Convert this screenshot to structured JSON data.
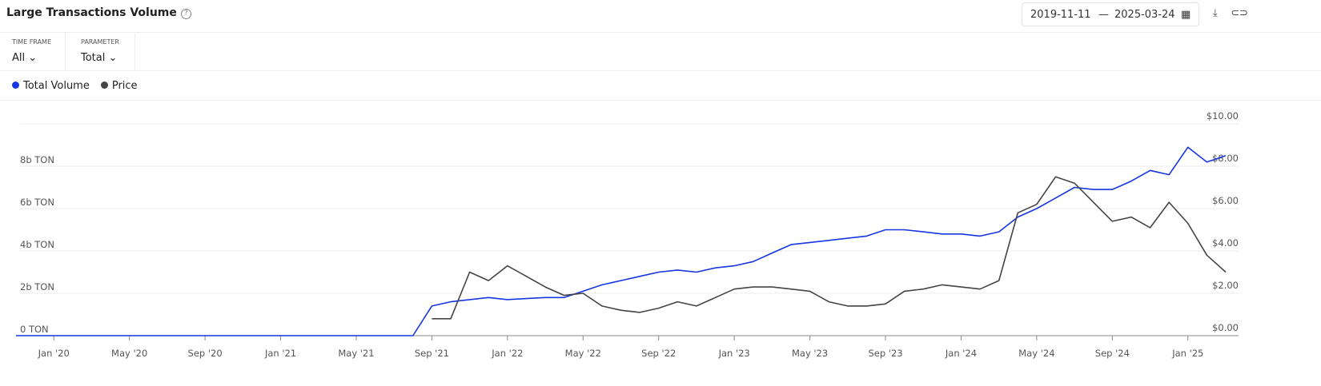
{
  "header": {
    "title": "Large Transactions Volume",
    "date_from": "2019-11-11",
    "date_separator": "—",
    "date_to": "2025-03-24"
  },
  "filters": [
    {
      "label": "TIME FRAME",
      "value": "All"
    },
    {
      "label": "PARAMETER",
      "value": "Total"
    }
  ],
  "chart_data": {
    "type": "line",
    "x": [
      "2019-11",
      "2019-12",
      "2020-01",
      "2020-02",
      "2020-03",
      "2020-04",
      "2020-05",
      "2020-06",
      "2020-07",
      "2020-08",
      "2020-09",
      "2020-10",
      "2020-11",
      "2020-12",
      "2021-01",
      "2021-02",
      "2021-03",
      "2021-04",
      "2021-05",
      "2021-06",
      "2021-07",
      "2021-08",
      "2021-09",
      "2021-10",
      "2021-11",
      "2021-12",
      "2022-01",
      "2022-02",
      "2022-03",
      "2022-04",
      "2022-05",
      "2022-06",
      "2022-07",
      "2022-08",
      "2022-09",
      "2022-10",
      "2022-11",
      "2022-12",
      "2023-01",
      "2023-02",
      "2023-03",
      "2023-04",
      "2023-05",
      "2023-06",
      "2023-07",
      "2023-08",
      "2023-09",
      "2023-10",
      "2023-11",
      "2023-12",
      "2024-01",
      "2024-02",
      "2024-03",
      "2024-04",
      "2024-05",
      "2024-06",
      "2024-07",
      "2024-08",
      "2024-09",
      "2024-10",
      "2024-11",
      "2024-12",
      "2025-01",
      "2025-02",
      "2025-03"
    ],
    "series": [
      {
        "name": "Total Volume",
        "color": "#1536e0",
        "axis": "y",
        "values": [
          0,
          0,
          0,
          0,
          0,
          0,
          0,
          0,
          0,
          0,
          0,
          0,
          0,
          0,
          0,
          0,
          0,
          0,
          0,
          0,
          0,
          0,
          1.4,
          1.6,
          1.7,
          1.8,
          1.7,
          1.75,
          1.8,
          1.8,
          2.1,
          2.4,
          2.6,
          2.8,
          3.0,
          3.1,
          3.0,
          3.2,
          3.3,
          3.5,
          3.9,
          4.3,
          4.4,
          4.5,
          4.6,
          4.7,
          5.0,
          5.0,
          4.9,
          4.8,
          4.8,
          4.7,
          4.9,
          5.6,
          6.0,
          6.5,
          7.0,
          6.9,
          6.9,
          7.3,
          7.8,
          7.6,
          8.9,
          8.2,
          8.5
        ]
      },
      {
        "name": "Price",
        "color": "#444444",
        "axis": "y2",
        "values": [
          null,
          null,
          null,
          null,
          null,
          null,
          null,
          null,
          null,
          null,
          null,
          null,
          null,
          null,
          null,
          null,
          null,
          null,
          null,
          null,
          null,
          null,
          0.8,
          0.8,
          3.0,
          2.6,
          3.3,
          2.8,
          2.3,
          1.9,
          2.0,
          1.4,
          1.2,
          1.1,
          1.3,
          1.6,
          1.4,
          1.8,
          2.2,
          2.3,
          2.3,
          2.2,
          2.1,
          1.6,
          1.4,
          1.4,
          1.5,
          2.1,
          2.2,
          2.4,
          2.3,
          2.2,
          2.6,
          5.8,
          6.2,
          7.5,
          7.2,
          6.3,
          5.4,
          5.6,
          5.1,
          6.3,
          5.3,
          3.8,
          3.0
        ]
      }
    ],
    "xlim": [
      "2019-11",
      "2025-03"
    ],
    "xticks": [
      {
        "value": "2020-01",
        "label": "Jan '20"
      },
      {
        "value": "2020-05",
        "label": "May '20"
      },
      {
        "value": "2020-09",
        "label": "Sep '20"
      },
      {
        "value": "2021-01",
        "label": "Jan '21"
      },
      {
        "value": "2021-05",
        "label": "May '21"
      },
      {
        "value": "2021-09",
        "label": "Sep '21"
      },
      {
        "value": "2022-01",
        "label": "Jan '22"
      },
      {
        "value": "2022-05",
        "label": "May '22"
      },
      {
        "value": "2022-09",
        "label": "Sep '22"
      },
      {
        "value": "2023-01",
        "label": "Jan '23"
      },
      {
        "value": "2023-05",
        "label": "May '23"
      },
      {
        "value": "2023-09",
        "label": "Sep '23"
      },
      {
        "value": "2024-01",
        "label": "Jan '24"
      },
      {
        "value": "2024-05",
        "label": "May '24"
      },
      {
        "value": "2024-09",
        "label": "Sep '24"
      },
      {
        "value": "2025-01",
        "label": "Jan '25"
      }
    ],
    "ylim": [
      0,
      10
    ],
    "yticks": [
      {
        "value": 0,
        "label": "0 TON"
      },
      {
        "value": 2,
        "label": "2b TON"
      },
      {
        "value": 4,
        "label": "4b TON"
      },
      {
        "value": 6,
        "label": "6b TON"
      },
      {
        "value": 8,
        "label": "8b TON"
      }
    ],
    "y2lim": [
      0,
      10
    ],
    "y2ticks": [
      {
        "value": 0,
        "label": "$0.00"
      },
      {
        "value": 2,
        "label": "$2.00"
      },
      {
        "value": 4,
        "label": "$4.00"
      },
      {
        "value": 6,
        "label": "$6.00"
      },
      {
        "value": 8,
        "label": "$8.00"
      },
      {
        "value": 10,
        "label": "$10.00"
      }
    ],
    "grid": true
  }
}
